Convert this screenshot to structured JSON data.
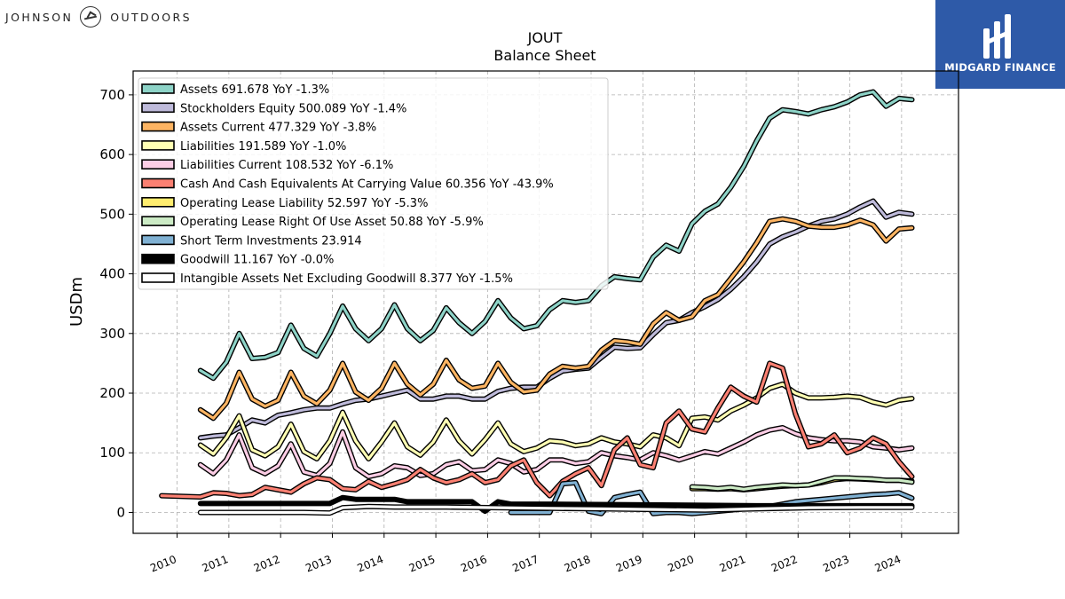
{
  "brand": {
    "left_text_1": "JOHNSON",
    "left_text_2": "OUTDOORS",
    "right_text": "MIDGARD FINANCE"
  },
  "chart_data": {
    "type": "line",
    "title": "JOUT",
    "subtitle": "Balance  Sheet",
    "xlabel": "",
    "ylabel": "USDm",
    "xlim": [
      2009.15,
      2025.1
    ],
    "ylim": [
      -35,
      740
    ],
    "x_ticks": [
      "2010",
      "2011",
      "2012",
      "2013",
      "2014",
      "2015",
      "2016",
      "2017",
      "2018",
      "2019",
      "2020",
      "2021",
      "2022",
      "2023",
      "2024"
    ],
    "y_ticks": [
      0,
      100,
      200,
      300,
      400,
      500,
      600,
      700
    ],
    "grid": true,
    "legend_position": "top-left",
    "series": [
      {
        "name": "Assets",
        "legend": "Assets  691.678 YoY -1.3%",
        "color": "#8dd3c7",
        "x": [
          2010.45,
          2010.7,
          2010.95,
          2011.2,
          2011.45,
          2011.7,
          2011.95,
          2012.2,
          2012.45,
          2012.7,
          2012.95,
          2013.2,
          2013.45,
          2013.7,
          2013.95,
          2014.2,
          2014.45,
          2014.7,
          2014.95,
          2015.2,
          2015.45,
          2015.7,
          2015.95,
          2016.2,
          2016.45,
          2016.7,
          2016.95,
          2017.2,
          2017.45,
          2017.7,
          2017.95,
          2018.2,
          2018.45,
          2018.7,
          2018.95,
          2019.2,
          2019.45,
          2019.7,
          2019.95,
          2020.2,
          2020.45,
          2020.7,
          2020.95,
          2021.2,
          2021.45,
          2021.7,
          2021.95,
          2022.2,
          2022.45,
          2022.7,
          2022.95,
          2023.2,
          2023.45,
          2023.7,
          2023.95,
          2024.2
        ],
        "values": [
          238,
          225,
          252,
          300,
          258,
          260,
          268,
          314,
          275,
          262,
          300,
          346,
          308,
          288,
          308,
          348,
          308,
          288,
          305,
          343,
          318,
          300,
          320,
          355,
          326,
          308,
          313,
          340,
          355,
          352,
          355,
          380,
          395,
          392,
          390,
          428,
          448,
          438,
          484,
          505,
          517,
          545,
          580,
          623,
          661,
          675,
          672,
          668,
          675,
          680,
          688,
          700,
          705,
          681,
          694,
          692
        ]
      },
      {
        "name": "Stockholders Equity",
        "legend": "Stockholders Equity  500.089 YoY -1.4%",
        "color": "#bebada",
        "x": [
          2010.45,
          2010.7,
          2010.95,
          2011.2,
          2011.45,
          2011.7,
          2011.95,
          2012.2,
          2012.45,
          2012.7,
          2012.95,
          2013.2,
          2013.45,
          2013.7,
          2013.95,
          2014.2,
          2014.45,
          2014.7,
          2014.95,
          2015.2,
          2015.45,
          2015.7,
          2015.95,
          2016.2,
          2016.45,
          2016.7,
          2016.95,
          2017.2,
          2017.45,
          2017.7,
          2017.95,
          2018.2,
          2018.45,
          2018.7,
          2018.95,
          2019.2,
          2019.45,
          2019.7,
          2019.95,
          2020.2,
          2020.45,
          2020.7,
          2020.95,
          2021.2,
          2021.45,
          2021.7,
          2021.95,
          2022.2,
          2022.45,
          2022.7,
          2022.95,
          2023.2,
          2023.45,
          2023.7,
          2023.95,
          2024.2
        ],
        "values": [
          125,
          128,
          130,
          142,
          155,
          150,
          163,
          167,
          172,
          175,
          175,
          182,
          188,
          190,
          195,
          200,
          205,
          190,
          190,
          195,
          195,
          190,
          190,
          203,
          208,
          210,
          210,
          225,
          237,
          240,
          242,
          260,
          277,
          275,
          276,
          298,
          318,
          322,
          335,
          345,
          357,
          374,
          395,
          420,
          450,
          462,
          470,
          480,
          488,
          492,
          500,
          512,
          522,
          495,
          503,
          500
        ]
      },
      {
        "name": "Assets Current",
        "legend": "Assets Current  477.329 YoY -3.8%",
        "color": "#fdb462",
        "x": [
          2010.45,
          2010.7,
          2010.95,
          2011.2,
          2011.45,
          2011.7,
          2011.95,
          2012.2,
          2012.45,
          2012.7,
          2012.95,
          2013.2,
          2013.45,
          2013.7,
          2013.95,
          2014.2,
          2014.45,
          2014.7,
          2014.95,
          2015.2,
          2015.45,
          2015.7,
          2015.95,
          2016.2,
          2016.45,
          2016.7,
          2016.95,
          2017.2,
          2017.45,
          2017.7,
          2017.95,
          2018.2,
          2018.45,
          2018.7,
          2018.95,
          2019.2,
          2019.45,
          2019.7,
          2019.95,
          2020.2,
          2020.45,
          2020.7,
          2020.95,
          2021.2,
          2021.45,
          2021.7,
          2021.95,
          2022.2,
          2022.45,
          2022.7,
          2022.95,
          2023.2,
          2023.45,
          2023.7,
          2023.95,
          2024.2
        ],
        "values": [
          172,
          158,
          183,
          235,
          190,
          178,
          188,
          235,
          195,
          182,
          205,
          250,
          202,
          188,
          208,
          250,
          215,
          197,
          215,
          255,
          222,
          208,
          212,
          250,
          218,
          202,
          205,
          232,
          245,
          242,
          245,
          272,
          288,
          286,
          282,
          316,
          335,
          322,
          328,
          355,
          365,
          392,
          420,
          452,
          488,
          492,
          488,
          480,
          478,
          478,
          482,
          490,
          482,
          455,
          475,
          477
        ]
      },
      {
        "name": "Liabilities",
        "legend": "Liabilities  191.589 YoY -1.0%",
        "color": "#ffffb3",
        "x": [
          2010.45,
          2010.7,
          2010.95,
          2011.2,
          2011.45,
          2011.7,
          2011.95,
          2012.2,
          2012.45,
          2012.7,
          2012.95,
          2013.2,
          2013.45,
          2013.7,
          2013.95,
          2014.2,
          2014.45,
          2014.7,
          2014.95,
          2015.2,
          2015.45,
          2015.7,
          2015.95,
          2016.2,
          2016.45,
          2016.7,
          2016.95,
          2017.2,
          2017.45,
          2017.7,
          2017.95,
          2018.2,
          2018.45,
          2018.7,
          2018.95,
          2019.2,
          2019.45,
          2019.7,
          2019.95,
          2020.2,
          2020.45,
          2020.7,
          2020.95,
          2021.2,
          2021.45,
          2021.7,
          2021.95,
          2022.2,
          2022.45,
          2022.7,
          2022.95,
          2023.2,
          2023.45,
          2023.7,
          2023.95,
          2024.2
        ],
        "values": [
          113,
          98,
          125,
          162,
          105,
          95,
          110,
          148,
          102,
          90,
          120,
          168,
          120,
          90,
          118,
          150,
          110,
          96,
          118,
          155,
          120,
          98,
          122,
          150,
          115,
          102,
          108,
          120,
          118,
          112,
          115,
          125,
          118,
          115,
          110,
          130,
          125,
          112,
          158,
          160,
          155,
          170,
          180,
          192,
          208,
          215,
          200,
          192,
          192,
          193,
          195,
          193,
          185,
          180,
          188,
          191
        ]
      },
      {
        "name": "Liabilities Current",
        "legend": "Liabilities Current  108.532 YoY -6.1%",
        "color": "#fccde5",
        "x": [
          2010.45,
          2010.7,
          2010.95,
          2011.2,
          2011.45,
          2011.7,
          2011.95,
          2012.2,
          2012.45,
          2012.7,
          2012.95,
          2013.2,
          2013.45,
          2013.7,
          2013.95,
          2014.2,
          2014.45,
          2014.7,
          2014.95,
          2015.2,
          2015.45,
          2015.7,
          2015.95,
          2016.2,
          2016.45,
          2016.7,
          2016.95,
          2017.2,
          2017.45,
          2017.7,
          2017.95,
          2018.2,
          2018.45,
          2018.7,
          2018.95,
          2019.2,
          2019.45,
          2019.7,
          2019.95,
          2020.2,
          2020.45,
          2020.7,
          2020.95,
          2021.2,
          2021.45,
          2021.7,
          2021.95,
          2022.2,
          2022.45,
          2022.7,
          2022.95,
          2023.2,
          2023.45,
          2023.7,
          2023.95,
          2024.2
        ],
        "values": [
          80,
          65,
          88,
          130,
          75,
          65,
          78,
          115,
          68,
          62,
          82,
          135,
          75,
          60,
          65,
          78,
          75,
          62,
          65,
          80,
          85,
          70,
          72,
          88,
          82,
          68,
          72,
          88,
          88,
          82,
          85,
          100,
          95,
          92,
          88,
          100,
          95,
          88,
          95,
          102,
          98,
          108,
          118,
          130,
          138,
          142,
          132,
          125,
          122,
          120,
          120,
          118,
          110,
          108,
          105,
          108
        ]
      },
      {
        "name": "Cash And Cash Equivalents At Carrying Value",
        "legend": "Cash And Cash Equivalents At Carrying Value  60.356 YoY -43.9%",
        "color": "#fb8072",
        "x": [
          2009.7,
          2010.45,
          2010.7,
          2010.95,
          2011.2,
          2011.45,
          2011.7,
          2011.95,
          2012.2,
          2012.45,
          2012.7,
          2012.95,
          2013.2,
          2013.45,
          2013.7,
          2013.95,
          2014.2,
          2014.45,
          2014.7,
          2014.95,
          2015.2,
          2015.45,
          2015.7,
          2015.95,
          2016.2,
          2016.45,
          2016.7,
          2016.95,
          2017.2,
          2017.45,
          2017.7,
          2017.95,
          2018.2,
          2018.45,
          2018.7,
          2018.95,
          2019.2,
          2019.45,
          2019.7,
          2019.95,
          2020.2,
          2020.45,
          2020.7,
          2020.95,
          2021.2,
          2021.45,
          2021.7,
          2021.95,
          2022.2,
          2022.45,
          2022.7,
          2022.95,
          2023.2,
          2023.45,
          2023.7,
          2023.95,
          2024.2
        ],
        "values": [
          28,
          26,
          33,
          32,
          28,
          30,
          42,
          38,
          34,
          48,
          58,
          55,
          40,
          38,
          52,
          42,
          48,
          55,
          72,
          58,
          50,
          55,
          65,
          50,
          55,
          78,
          88,
          50,
          28,
          52,
          65,
          75,
          45,
          105,
          125,
          80,
          75,
          150,
          170,
          140,
          135,
          175,
          210,
          195,
          185,
          250,
          242,
          165,
          110,
          115,
          130,
          100,
          108,
          125,
          115,
          85,
          60
        ]
      },
      {
        "name": "Operating Lease Liability",
        "legend": "Operating Lease Liability  52.597 YoY -5.3%",
        "color": "#ffed6f",
        "x": [
          2019.95,
          2020.2,
          2020.45,
          2020.7,
          2020.95,
          2021.2,
          2021.45,
          2021.7,
          2021.95,
          2022.2,
          2022.45,
          2022.7,
          2022.95,
          2023.2,
          2023.45,
          2023.7,
          2023.95,
          2024.2
        ],
        "values": [
          40,
          40,
          39,
          40,
          38,
          40,
          42,
          44,
          45,
          46,
          50,
          55,
          57,
          56,
          55,
          54,
          54,
          52.6
        ]
      },
      {
        "name": "Operating Lease Right Of Use Asset",
        "legend": "Operating Lease Right Of Use Asset  50.88 YoY -5.9%",
        "color": "#ccebc5",
        "x": [
          2019.95,
          2020.2,
          2020.45,
          2020.7,
          2020.95,
          2021.2,
          2021.45,
          2021.7,
          2021.95,
          2022.2,
          2022.45,
          2022.7,
          2022.95,
          2023.2,
          2023.45,
          2023.7,
          2023.95,
          2024.2
        ],
        "values": [
          43,
          42,
          40,
          42,
          39,
          42,
          44,
          46,
          45,
          46,
          52,
          58,
          58,
          57,
          56,
          54,
          54,
          50.9
        ]
      },
      {
        "name": "Short Term Investments",
        "legend": "Short Term Investments  23.914",
        "color": "#80b1d3",
        "x": [
          2016.45,
          2016.7,
          2016.95,
          2017.2,
          2017.45,
          2017.7,
          2017.95,
          2018.2,
          2018.45,
          2018.7,
          2018.95,
          2019.2,
          2019.45,
          2019.7,
          2019.95,
          2020.2,
          2020.45,
          2020.7,
          2020.95,
          2021.2,
          2021.45,
          2021.7,
          2021.95,
          2022.2,
          2022.45,
          2022.7,
          2022.95,
          2023.2,
          2023.45,
          2023.7,
          2023.95,
          2024.2
        ],
        "values": [
          0,
          0,
          0,
          0,
          48,
          50,
          2,
          -2,
          25,
          30,
          34,
          -2,
          0,
          0,
          -2,
          0,
          2,
          4,
          6,
          8,
          10,
          14,
          18,
          20,
          22,
          24,
          26,
          28,
          30,
          31,
          33,
          23.9
        ]
      },
      {
        "name": "Goodwill",
        "legend": "Goodwill  11.167 YoY -0.0%",
        "color": "#000000",
        "x": [
          2010.45,
          2012.95,
          2013.2,
          2013.45,
          2014.2,
          2014.45,
          2015.45,
          2015.7,
          2015.95,
          2016.2,
          2016.45,
          2017.2,
          2020.2,
          2021.2,
          2024.2
        ],
        "values": [
          15,
          15,
          25,
          22,
          22,
          18,
          18,
          18,
          2,
          18,
          14,
          14,
          12,
          11.2,
          11.2
        ]
      },
      {
        "name": "Intangible Assets Net Excluding Goodwill",
        "legend": "Intangible Assets Net Excluding Goodwill  8.377 YoY -1.5%",
        "color": "#ffffff",
        "x": [
          2010.45,
          2012.45,
          2012.95,
          2013.2,
          2013.7,
          2014.2,
          2015.2,
          2016.2,
          2017.2,
          2018.2,
          2019.2,
          2020.2,
          2021.2,
          2022.2,
          2023.2,
          2024.2
        ],
        "values": [
          0,
          0,
          -1,
          8,
          10,
          9,
          9,
          8,
          7,
          6,
          5,
          4,
          6,
          8,
          8.5,
          8.4
        ]
      }
    ]
  }
}
